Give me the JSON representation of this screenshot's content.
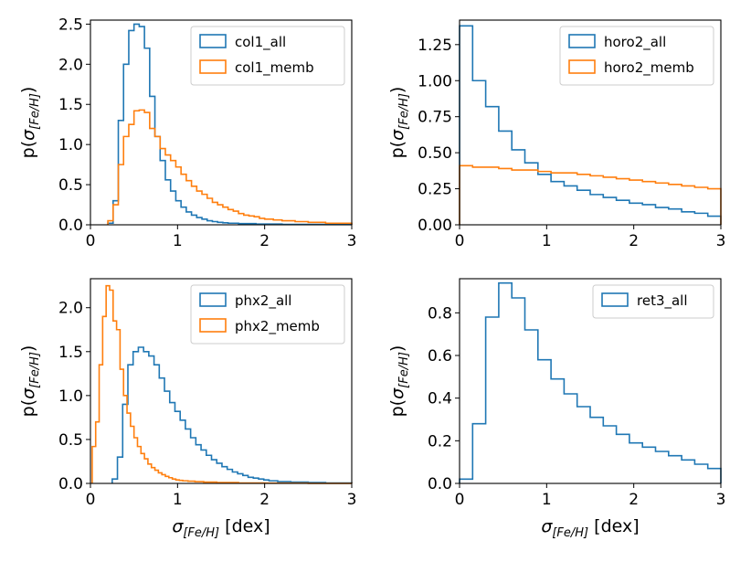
{
  "colors": {
    "all": "#1f77b4",
    "memb": "#ff7f0e"
  },
  "ylabel": {
    "main": "p(",
    "sym": "σ",
    "sub": "[Fe/H]",
    "close": ")"
  },
  "xlabel": {
    "sym": "σ",
    "sub": "[Fe/H]",
    "unit": " [dex]"
  },
  "chart_data": [
    {
      "type": "step-histogram",
      "xlim": [
        0,
        3
      ],
      "ylim": [
        0,
        2.55
      ],
      "xticks": [
        0,
        1,
        2,
        3
      ],
      "yticks": [
        0.0,
        0.5,
        1.0,
        1.5,
        2.0,
        2.5
      ],
      "xtick_labels": [
        "0",
        "1",
        "2",
        "3"
      ],
      "ytick_labels": [
        "0.0",
        "0.5",
        "1.0",
        "1.5",
        "2.0",
        "2.5"
      ],
      "xlabel": "",
      "ylabel": "p(σ[Fe/H])",
      "legend": "top-right",
      "series": [
        {
          "name": "col1_all",
          "color": "#1f77b4",
          "edges": [
            0.2,
            0.26,
            0.32,
            0.38,
            0.44,
            0.5,
            0.56,
            0.62,
            0.68,
            0.74,
            0.8,
            0.86,
            0.92,
            0.98,
            1.04,
            1.1,
            1.16,
            1.22,
            1.28,
            1.34,
            1.4,
            1.46,
            1.52,
            1.58,
            1.7,
            1.9,
            2.2,
            3.0
          ],
          "values": [
            0.02,
            0.3,
            1.3,
            2.0,
            2.42,
            2.5,
            2.47,
            2.2,
            1.6,
            1.1,
            0.8,
            0.56,
            0.42,
            0.3,
            0.22,
            0.16,
            0.12,
            0.09,
            0.07,
            0.05,
            0.04,
            0.03,
            0.025,
            0.02,
            0.015,
            0.01,
            0.005
          ]
        },
        {
          "name": "col1_memb",
          "color": "#ff7f0e",
          "edges": [
            0.2,
            0.26,
            0.32,
            0.38,
            0.44,
            0.5,
            0.56,
            0.62,
            0.68,
            0.74,
            0.8,
            0.86,
            0.92,
            0.98,
            1.04,
            1.1,
            1.16,
            1.22,
            1.28,
            1.34,
            1.4,
            1.46,
            1.52,
            1.58,
            1.64,
            1.7,
            1.76,
            1.82,
            1.88,
            1.94,
            2.0,
            2.1,
            2.2,
            2.35,
            2.5,
            2.7,
            3.0
          ],
          "values": [
            0.05,
            0.25,
            0.75,
            1.1,
            1.25,
            1.42,
            1.43,
            1.4,
            1.2,
            1.1,
            0.95,
            0.87,
            0.8,
            0.72,
            0.63,
            0.55,
            0.48,
            0.42,
            0.38,
            0.33,
            0.28,
            0.25,
            0.22,
            0.19,
            0.17,
            0.14,
            0.12,
            0.11,
            0.1,
            0.08,
            0.07,
            0.06,
            0.05,
            0.04,
            0.03,
            0.02
          ]
        }
      ]
    },
    {
      "type": "step-histogram",
      "xlim": [
        0,
        3
      ],
      "ylim": [
        0,
        1.42
      ],
      "xticks": [
        0,
        1,
        2,
        3
      ],
      "yticks": [
        0.0,
        0.25,
        0.5,
        0.75,
        1.0,
        1.25
      ],
      "xtick_labels": [
        "0",
        "1",
        "2",
        "3"
      ],
      "ytick_labels": [
        "0.00",
        "0.25",
        "0.50",
        "0.75",
        "1.00",
        "1.25"
      ],
      "xlabel": "",
      "ylabel": "p(σ[Fe/H])",
      "legend": "top-right",
      "series": [
        {
          "name": "horo2_all",
          "color": "#1f77b4",
          "edges": [
            0.0,
            0.15,
            0.3,
            0.45,
            0.6,
            0.75,
            0.9,
            1.05,
            1.2,
            1.35,
            1.5,
            1.65,
            1.8,
            1.95,
            2.1,
            2.25,
            2.4,
            2.55,
            2.7,
            2.85,
            3.0
          ],
          "values": [
            1.38,
            1.0,
            0.82,
            0.65,
            0.52,
            0.43,
            0.35,
            0.3,
            0.27,
            0.24,
            0.21,
            0.19,
            0.17,
            0.15,
            0.14,
            0.12,
            0.11,
            0.09,
            0.08,
            0.06
          ]
        },
        {
          "name": "horo2_memb",
          "color": "#ff7f0e",
          "edges": [
            0.0,
            0.15,
            0.3,
            0.45,
            0.6,
            0.75,
            0.9,
            1.05,
            1.2,
            1.35,
            1.5,
            1.65,
            1.8,
            1.95,
            2.1,
            2.25,
            2.4,
            2.55,
            2.7,
            2.85,
            3.0
          ],
          "values": [
            0.41,
            0.4,
            0.4,
            0.39,
            0.38,
            0.38,
            0.37,
            0.36,
            0.36,
            0.35,
            0.34,
            0.33,
            0.32,
            0.31,
            0.3,
            0.29,
            0.28,
            0.27,
            0.26,
            0.25
          ]
        }
      ]
    },
    {
      "type": "step-histogram",
      "xlim": [
        0,
        3
      ],
      "ylim": [
        0,
        2.33
      ],
      "xticks": [
        0,
        1,
        2,
        3
      ],
      "yticks": [
        0.0,
        0.5,
        1.0,
        1.5,
        2.0
      ],
      "xtick_labels": [
        "0",
        "1",
        "2",
        "3"
      ],
      "ytick_labels": [
        "0.0",
        "0.5",
        "1.0",
        "1.5",
        "2.0"
      ],
      "xlabel": "σ[Fe/H] [dex]",
      "ylabel": "p(σ[Fe/H])",
      "legend": "top-right",
      "series": [
        {
          "name": "phx2_all",
          "color": "#1f77b4",
          "edges": [
            0.25,
            0.31,
            0.37,
            0.43,
            0.49,
            0.55,
            0.61,
            0.67,
            0.73,
            0.79,
            0.85,
            0.91,
            0.97,
            1.03,
            1.09,
            1.15,
            1.21,
            1.27,
            1.33,
            1.39,
            1.45,
            1.51,
            1.57,
            1.63,
            1.69,
            1.75,
            1.81,
            1.87,
            1.93,
            1.99,
            2.05,
            2.15,
            2.3,
            2.5,
            2.7,
            3.0
          ],
          "values": [
            0.05,
            0.3,
            0.9,
            1.35,
            1.5,
            1.55,
            1.5,
            1.45,
            1.35,
            1.2,
            1.05,
            0.92,
            0.82,
            0.72,
            0.62,
            0.52,
            0.44,
            0.38,
            0.32,
            0.27,
            0.23,
            0.19,
            0.16,
            0.13,
            0.11,
            0.09,
            0.07,
            0.06,
            0.05,
            0.04,
            0.03,
            0.02,
            0.015,
            0.01,
            0.005
          ]
        },
        {
          "name": "phx2_memb",
          "color": "#ff7f0e",
          "edges": [
            0.02,
            0.06,
            0.1,
            0.14,
            0.18,
            0.22,
            0.26,
            0.3,
            0.34,
            0.38,
            0.42,
            0.46,
            0.5,
            0.54,
            0.58,
            0.62,
            0.66,
            0.7,
            0.74,
            0.78,
            0.82,
            0.86,
            0.9,
            0.94,
            0.98,
            1.02,
            1.06,
            1.12,
            1.2,
            1.3,
            1.45,
            1.7,
            2.0,
            2.5,
            3.0
          ],
          "values": [
            0.42,
            0.7,
            1.35,
            1.9,
            2.25,
            2.2,
            1.85,
            1.75,
            1.3,
            1.0,
            0.8,
            0.65,
            0.52,
            0.42,
            0.34,
            0.28,
            0.22,
            0.18,
            0.15,
            0.12,
            0.1,
            0.08,
            0.065,
            0.05,
            0.04,
            0.035,
            0.03,
            0.025,
            0.02,
            0.015,
            0.01,
            0.005,
            0.003,
            0.001
          ]
        }
      ]
    },
    {
      "type": "step-histogram",
      "xlim": [
        0,
        3
      ],
      "ylim": [
        0,
        0.96
      ],
      "xticks": [
        0,
        1,
        2,
        3
      ],
      "yticks": [
        0.0,
        0.2,
        0.4,
        0.6,
        0.8
      ],
      "xtick_labels": [
        "0",
        "1",
        "2",
        "3"
      ],
      "ytick_labels": [
        "0.0",
        "0.2",
        "0.4",
        "0.6",
        "0.8"
      ],
      "xlabel": "σ[Fe/H] [dex]",
      "ylabel": "p(σ[Fe/H])",
      "legend": "top-right",
      "series": [
        {
          "name": "ret3_all",
          "color": "#1f77b4",
          "edges": [
            0.0,
            0.15,
            0.3,
            0.45,
            0.6,
            0.75,
            0.9,
            1.05,
            1.2,
            1.35,
            1.5,
            1.65,
            1.8,
            1.95,
            2.1,
            2.25,
            2.4,
            2.55,
            2.7,
            2.85,
            3.0
          ],
          "values": [
            0.02,
            0.28,
            0.78,
            0.94,
            0.87,
            0.72,
            0.58,
            0.49,
            0.42,
            0.36,
            0.31,
            0.27,
            0.23,
            0.19,
            0.17,
            0.15,
            0.13,
            0.11,
            0.09,
            0.07
          ]
        }
      ]
    }
  ]
}
